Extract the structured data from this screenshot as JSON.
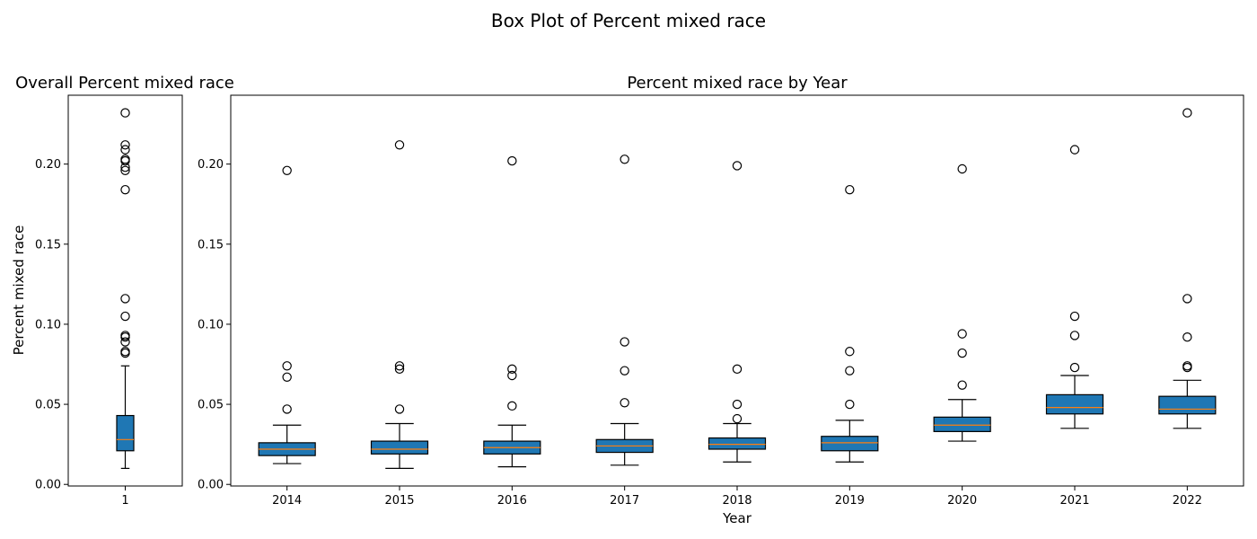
{
  "figure": {
    "title": "Box Plot of Percent mixed race"
  },
  "chart_data": [
    {
      "type": "box",
      "title": "Overall Percent mixed race",
      "xlabel": "",
      "ylabel": "Percent mixed race",
      "categories": [
        "1"
      ],
      "ylim": [
        -0.001,
        0.243
      ],
      "yticks": [
        0.0,
        0.05,
        0.1,
        0.15,
        0.2
      ],
      "ytick_labels": [
        "0.00",
        "0.05",
        "0.10",
        "0.15",
        "0.20"
      ],
      "box_color": "#1f77b4",
      "median_color": "#ff7f0e",
      "boxes": [
        {
          "category": "1",
          "whisker_low": 0.01,
          "q1": 0.021,
          "median": 0.028,
          "q3": 0.043,
          "whisker_high": 0.074,
          "outliers": [
            0.082,
            0.083,
            0.089,
            0.092,
            0.093,
            0.105,
            0.116,
            0.184,
            0.196,
            0.198,
            0.202,
            0.203,
            0.209,
            0.212,
            0.232
          ]
        }
      ]
    },
    {
      "type": "box",
      "title": "Percent mixed race by Year",
      "xlabel": "Year",
      "ylabel": "",
      "categories": [
        "2014",
        "2015",
        "2016",
        "2017",
        "2018",
        "2019",
        "2020",
        "2021",
        "2022"
      ],
      "ylim": [
        -0.001,
        0.243
      ],
      "yticks": [
        0.0,
        0.05,
        0.1,
        0.15,
        0.2
      ],
      "ytick_labels": [
        "0.00",
        "0.05",
        "0.10",
        "0.15",
        "0.20"
      ],
      "box_color": "#1f77b4",
      "median_color": "#ff7f0e",
      "boxes": [
        {
          "category": "2014",
          "whisker_low": 0.013,
          "q1": 0.018,
          "median": 0.022,
          "q3": 0.026,
          "whisker_high": 0.037,
          "outliers": [
            0.047,
            0.067,
            0.074,
            0.196
          ]
        },
        {
          "category": "2015",
          "whisker_low": 0.01,
          "q1": 0.019,
          "median": 0.022,
          "q3": 0.027,
          "whisker_high": 0.038,
          "outliers": [
            0.047,
            0.072,
            0.074,
            0.212
          ]
        },
        {
          "category": "2016",
          "whisker_low": 0.011,
          "q1": 0.019,
          "median": 0.023,
          "q3": 0.027,
          "whisker_high": 0.037,
          "outliers": [
            0.049,
            0.068,
            0.072,
            0.202
          ]
        },
        {
          "category": "2017",
          "whisker_low": 0.012,
          "q1": 0.02,
          "median": 0.024,
          "q3": 0.028,
          "whisker_high": 0.038,
          "outliers": [
            0.051,
            0.071,
            0.089,
            0.203
          ]
        },
        {
          "category": "2018",
          "whisker_low": 0.014,
          "q1": 0.022,
          "median": 0.025,
          "q3": 0.029,
          "whisker_high": 0.038,
          "outliers": [
            0.041,
            0.05,
            0.072,
            0.199
          ]
        },
        {
          "category": "2019",
          "whisker_low": 0.014,
          "q1": 0.021,
          "median": 0.026,
          "q3": 0.03,
          "whisker_high": 0.04,
          "outliers": [
            0.05,
            0.071,
            0.083,
            0.184
          ]
        },
        {
          "category": "2020",
          "whisker_low": 0.027,
          "q1": 0.033,
          "median": 0.037,
          "q3": 0.042,
          "whisker_high": 0.053,
          "outliers": [
            0.062,
            0.082,
            0.094,
            0.197
          ]
        },
        {
          "category": "2021",
          "whisker_low": 0.035,
          "q1": 0.044,
          "median": 0.048,
          "q3": 0.056,
          "whisker_high": 0.068,
          "outliers": [
            0.073,
            0.093,
            0.105,
            0.209
          ]
        },
        {
          "category": "2022",
          "whisker_low": 0.035,
          "q1": 0.044,
          "median": 0.047,
          "q3": 0.055,
          "whisker_high": 0.065,
          "outliers": [
            0.073,
            0.074,
            0.092,
            0.116,
            0.232
          ]
        }
      ]
    }
  ]
}
